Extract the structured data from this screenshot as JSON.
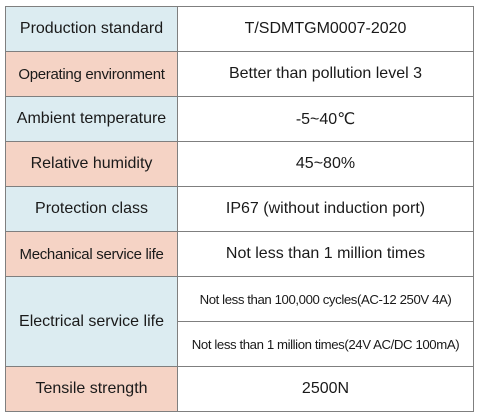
{
  "rows": [
    {
      "label": "Production standard",
      "value": "T/SDMTGM0007-2020",
      "bg": "#dcecf1"
    },
    {
      "label": "Operating environment",
      "value": "Better than pollution level 3",
      "bg": "#f5d3c5"
    },
    {
      "label": "Ambient temperature",
      "value": "-5~40℃",
      "bg": "#dcecf1"
    },
    {
      "label": "Relative humidity",
      "value": "45~80%",
      "bg": "#f5d3c5"
    },
    {
      "label": "Protection class",
      "value": "IP67 (without induction port)",
      "bg": "#dcecf1"
    },
    {
      "label": "Mechanical service life",
      "value": "Not less than 1 million times",
      "bg": "#f5d3c5"
    },
    {
      "label": "Electrical service life",
      "values": [
        "Not less than 100,000 cycles(AC-12 250V 4A)",
        "Not less than 1 million times(24V AC/DC 100mA)"
      ],
      "bg": "#dcecf1"
    },
    {
      "label": "Tensile strength",
      "value": "2500N",
      "bg": "#f5d3c5"
    }
  ],
  "colors": {
    "blue_cell": "#dcecf1",
    "pink_cell": "#f5d3c5",
    "border": "#7f7f7f"
  }
}
